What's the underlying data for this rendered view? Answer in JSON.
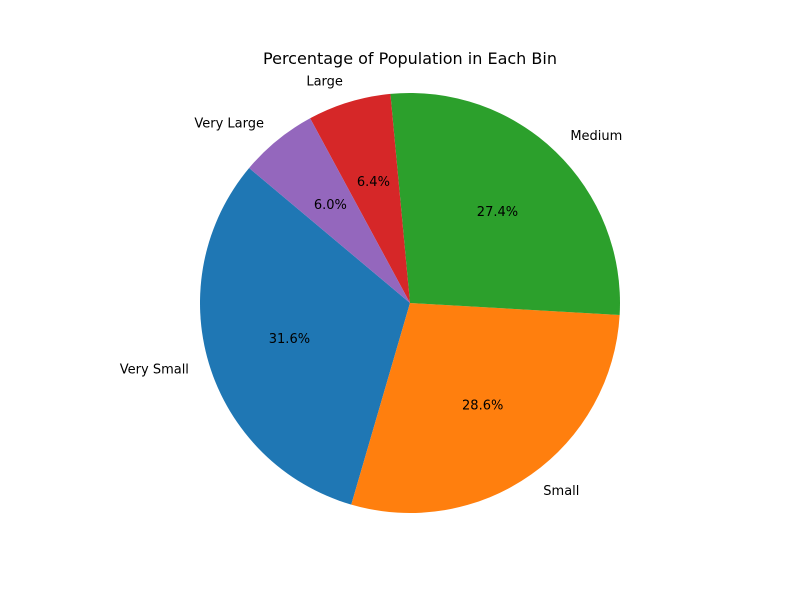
{
  "chart_data": {
    "type": "pie",
    "title": "Percentage of Population in Each Bin",
    "start_angle_deg": 140,
    "direction": "counterclockwise",
    "slices": [
      {
        "label": "Very Small",
        "value": 31.6,
        "pct_label": "31.6%",
        "color": "#1f77b4"
      },
      {
        "label": "Small",
        "value": 28.6,
        "pct_label": "28.6%",
        "color": "#ff7f0e"
      },
      {
        "label": "Medium",
        "value": 27.4,
        "pct_label": "27.4%",
        "color": "#2ca02c"
      },
      {
        "label": "Large",
        "value": 6.4,
        "pct_label": "6.4%",
        "color": "#d62728"
      },
      {
        "label": "Very Large",
        "value": 6.0,
        "pct_label": "6.0%",
        "color": "#9467bd"
      }
    ]
  }
}
